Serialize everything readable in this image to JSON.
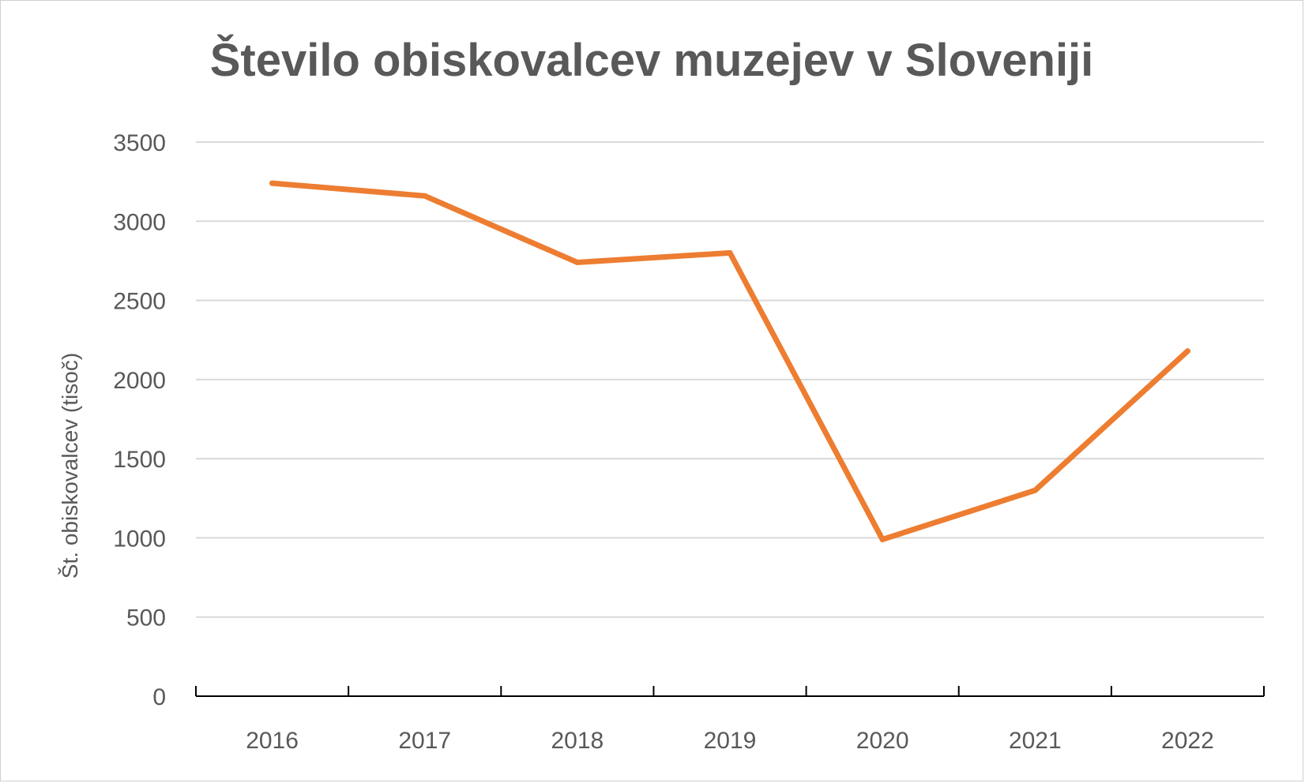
{
  "chart_data": {
    "type": "line",
    "title": "Število obiskovalcev muzejev v Sloveniji",
    "xlabel": "",
    "ylabel": "Št. obiskovalcev (tisoč)",
    "categories": [
      "2016",
      "2017",
      "2018",
      "2019",
      "2020",
      "2021",
      "2022"
    ],
    "series": [
      {
        "values": [
          3240,
          3160,
          2740,
          2800,
          990,
          1300,
          2180
        ],
        "color": "#ED7D31"
      }
    ],
    "ylim": [
      0,
      3500
    ],
    "yticks": [
      0,
      500,
      1000,
      1500,
      2000,
      2500,
      3000,
      3500
    ],
    "grid": true,
    "gridColor": "#d9d9d9",
    "axisColor": "#000000",
    "legend": "none"
  }
}
